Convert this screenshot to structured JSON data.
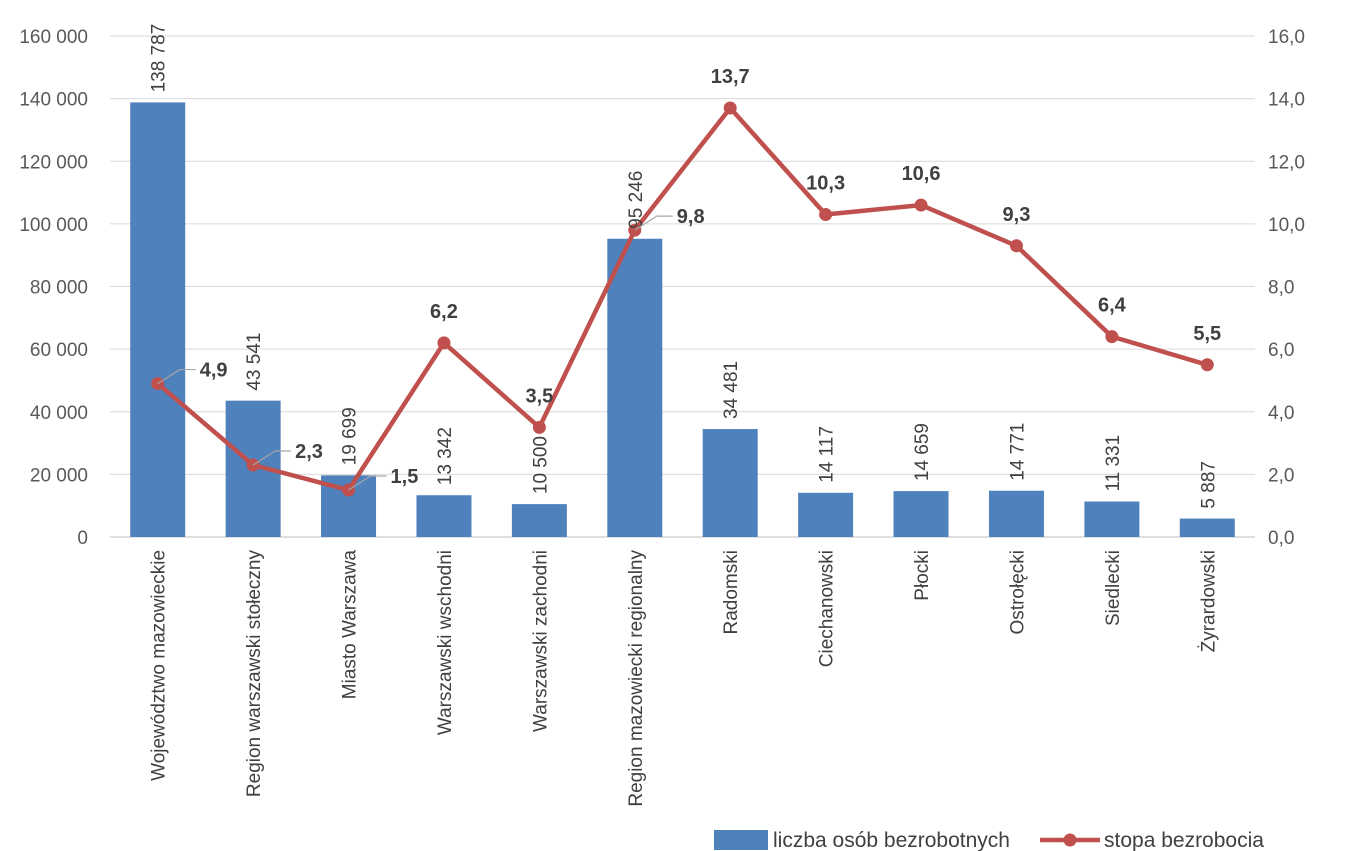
{
  "chart_data": {
    "type": "bar",
    "categories": [
      "Województwo mazowieckie",
      "Region warszawski stołeczny",
      "Miasto Warszawa",
      "Warszawski wschodni",
      "Warszawski zachodni",
      "Region mazowiecki regionalny",
      "Radomski",
      "Ciechanowski",
      "Płocki",
      "Ostrołęcki",
      "Siedlecki",
      "Żyrardowski"
    ],
    "series": [
      {
        "name": "liczba osób bezrobotnych",
        "type": "bar",
        "axis": "left",
        "color": "#4f81bd",
        "values": [
          138787,
          43541,
          19699,
          13342,
          10500,
          95246,
          34481,
          14117,
          14659,
          14771,
          11331,
          5887
        ],
        "labels": [
          "138 787",
          "43 541",
          "19 699",
          "13 342",
          "10 500",
          "95 246",
          "34 481",
          "14 117",
          "14 659",
          "14 771",
          "11 331",
          "5 887"
        ]
      },
      {
        "name": "stopa bezrobocia",
        "type": "line",
        "axis": "right",
        "color": "#c0504d",
        "values": [
          4.9,
          2.3,
          1.5,
          6.2,
          3.5,
          9.8,
          13.7,
          10.3,
          10.6,
          9.3,
          6.4,
          5.5
        ],
        "labels": [
          "4,9",
          "2,3",
          "1,5",
          "6,2",
          "3,5",
          "9,8",
          "13,7",
          "10,3",
          "10,6",
          "9,3",
          "6,4",
          "5,5"
        ]
      }
    ],
    "y_left": {
      "range": [
        0,
        160000
      ],
      "ticks": [
        0,
        20000,
        40000,
        60000,
        80000,
        100000,
        120000,
        140000,
        160000
      ],
      "tick_labels": [
        "0",
        "20 000",
        "40 000",
        "60 000",
        "80 000",
        "100 000",
        "120 000",
        "140 000",
        "160 000"
      ]
    },
    "y_right": {
      "range": [
        0,
        16
      ],
      "ticks": [
        0,
        2,
        4,
        6,
        8,
        10,
        12,
        14,
        16
      ],
      "tick_labels": [
        "0,0",
        "2,0",
        "4,0",
        "6,0",
        "8,0",
        "10,0",
        "12,0",
        "14,0",
        "16,0"
      ]
    },
    "grid": true,
    "legend": "bottom-right"
  }
}
